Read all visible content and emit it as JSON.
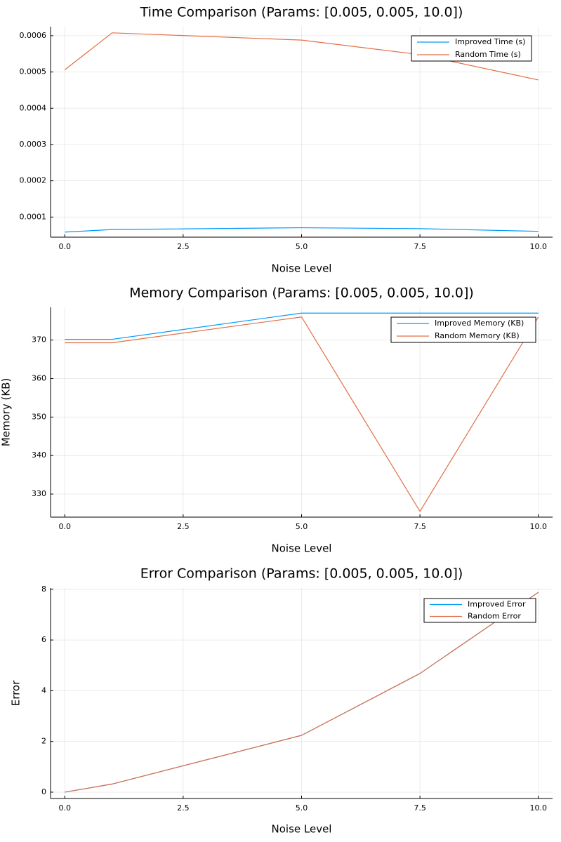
{
  "chart_data": [
    {
      "type": "line",
      "title": "Time Comparison (Params: [0.005, 0.005, 10.0])",
      "xlabel": "Noise Level",
      "ylabel": "",
      "x": [
        0.0,
        1.0,
        5.0,
        7.5,
        10.0
      ],
      "xlim": [
        -0.3,
        10.3
      ],
      "ylim": [
        4.45e-05,
        0.000625
      ],
      "xticks": [
        0,
        2.5,
        5,
        7.5,
        10
      ],
      "xtick_labels": [
        "0.0",
        "2.5",
        "5.0",
        "7.5",
        "10.0"
      ],
      "yticks": [
        0.0001,
        0.0002,
        0.0003,
        0.0004,
        0.0005,
        0.0006
      ],
      "ytick_labels": [
        "0.0001",
        "0.0002",
        "0.0003",
        "0.0004",
        "0.0005",
        "0.0006"
      ],
      "grid": true,
      "legend": "top-right",
      "series": [
        {
          "name": "Improved Time (s)",
          "color": "#009AFA",
          "values": [
            5.85e-05,
            6.55e-05,
            7.05e-05,
            6.8e-05,
            6.05e-05
          ]
        },
        {
          "name": "Random Time (s)",
          "color": "#E26F46",
          "values": [
            0.000506,
            0.000608,
            0.000588,
            0.000548,
            0.000478
          ]
        }
      ]
    },
    {
      "type": "line",
      "title": "Memory Comparison (Params: [0.005, 0.005, 10.0])",
      "xlabel": "Noise Level",
      "ylabel": "Memory (KB)",
      "x": [
        0.0,
        1.0,
        5.0,
        7.5,
        10.0
      ],
      "xlim": [
        -0.3,
        10.3
      ],
      "ylim": [
        324.0,
        378.5
      ],
      "xticks": [
        0,
        2.5,
        5,
        7.5,
        10
      ],
      "xtick_labels": [
        "0.0",
        "2.5",
        "5.0",
        "7.5",
        "10.0"
      ],
      "yticks": [
        330,
        340,
        350,
        360,
        370
      ],
      "ytick_labels": [
        "330",
        "340",
        "350",
        "360",
        "370"
      ],
      "grid": true,
      "legend": "top-right",
      "series": [
        {
          "name": "Improved Memory (KB)",
          "color": "#009AFA",
          "values": [
            370.2,
            370.2,
            377.0,
            377.0,
            377.0
          ]
        },
        {
          "name": "Random Memory (KB)",
          "color": "#E26F46",
          "values": [
            369.3,
            369.3,
            376.0,
            325.5,
            376.0
          ]
        }
      ]
    },
    {
      "type": "line",
      "title": "Error Comparison (Params: [0.005, 0.005, 10.0])",
      "xlabel": "Noise Level",
      "ylabel": "Error",
      "x": [
        0.0,
        1.0,
        5.0,
        7.5,
        10.0
      ],
      "xlim": [
        -0.3,
        10.3
      ],
      "ylim": [
        -0.25,
        8.05
      ],
      "xticks": [
        0,
        2.5,
        5,
        7.5,
        10
      ],
      "xtick_labels": [
        "0.0",
        "2.5",
        "5.0",
        "7.5",
        "10.0"
      ],
      "yticks": [
        0,
        2,
        4,
        6,
        8
      ],
      "ytick_labels": [
        "0",
        "2",
        "4",
        "6",
        "8"
      ],
      "grid": true,
      "legend": "top-right",
      "series": [
        {
          "name": "Improved Error",
          "color": "#009AFA",
          "values": [
            0.0,
            0.32,
            2.24,
            4.68,
            7.88
          ]
        },
        {
          "name": "Random Error",
          "color": "#E26F46",
          "values": [
            0.0,
            0.32,
            2.24,
            4.68,
            7.88
          ]
        }
      ]
    }
  ]
}
